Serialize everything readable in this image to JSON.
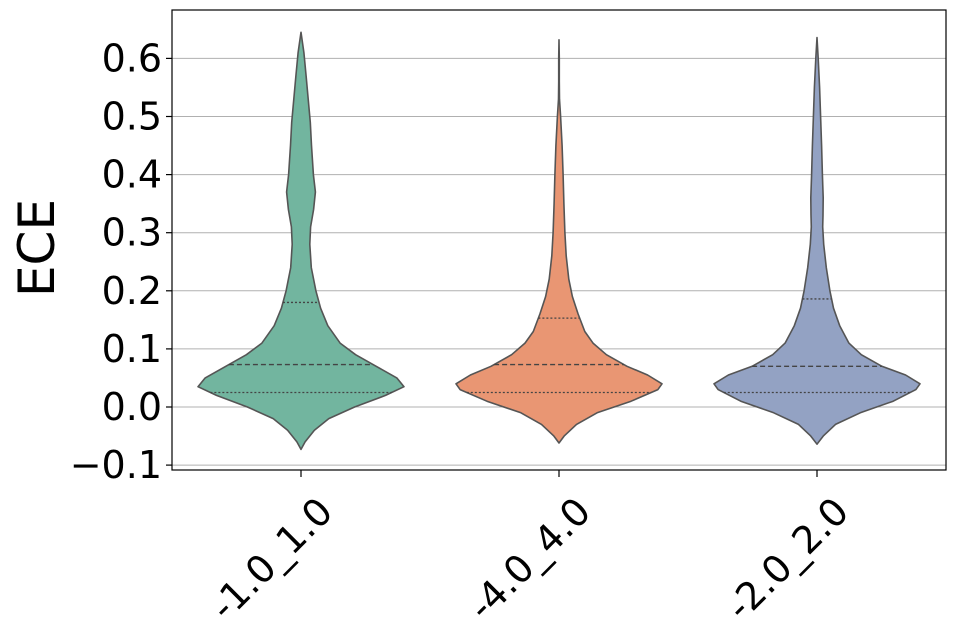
{
  "chart_data": {
    "type": "violin",
    "title": "",
    "xlabel": "",
    "ylabel": "ECE",
    "ylim": [
      -0.105,
      0.68
    ],
    "yticks": [
      -0.1,
      0.0,
      0.1,
      0.2,
      0.3,
      0.4,
      0.5,
      0.6
    ],
    "ytick_labels": [
      "−0.1",
      "0.0",
      "0.1",
      "0.2",
      "0.3",
      "0.4",
      "0.5",
      "0.6"
    ],
    "grid": "horizontal",
    "x_tick_rotation": 45,
    "categories": [
      "-1.0_1.0",
      "-4.0_4.0",
      "-2.0_2.0"
    ],
    "colors": [
      "#72b59f",
      "#e99673",
      "#93a2c3"
    ],
    "outline_color": "#555555",
    "series": [
      {
        "category": "-1.0_1.0",
        "q1": 0.025,
        "median": 0.073,
        "q3": 0.18,
        "min": -0.073,
        "max": 0.645,
        "density": [
          [
            -0.073,
            0.0
          ],
          [
            -0.06,
            0.04
          ],
          [
            -0.04,
            0.13
          ],
          [
            -0.02,
            0.27
          ],
          [
            0.0,
            0.52
          ],
          [
            0.02,
            0.82
          ],
          [
            0.035,
            1.0
          ],
          [
            0.05,
            0.93
          ],
          [
            0.07,
            0.73
          ],
          [
            0.09,
            0.53
          ],
          [
            0.11,
            0.38
          ],
          [
            0.14,
            0.26
          ],
          [
            0.17,
            0.19
          ],
          [
            0.2,
            0.145
          ],
          [
            0.24,
            0.1
          ],
          [
            0.28,
            0.085
          ],
          [
            0.31,
            0.093
          ],
          [
            0.34,
            0.122
          ],
          [
            0.37,
            0.14
          ],
          [
            0.4,
            0.12
          ],
          [
            0.45,
            0.102
          ],
          [
            0.49,
            0.09
          ],
          [
            0.53,
            0.07
          ],
          [
            0.57,
            0.05
          ],
          [
            0.61,
            0.028
          ],
          [
            0.645,
            0.0
          ]
        ]
      },
      {
        "category": "-4.0_4.0",
        "q1": 0.025,
        "median": 0.073,
        "q3": 0.153,
        "min": -0.062,
        "max": 0.632,
        "density": [
          [
            -0.062,
            0.0
          ],
          [
            -0.05,
            0.05
          ],
          [
            -0.03,
            0.17
          ],
          [
            -0.01,
            0.37
          ],
          [
            0.01,
            0.7
          ],
          [
            0.03,
            0.96
          ],
          [
            0.04,
            1.0
          ],
          [
            0.055,
            0.86
          ],
          [
            0.07,
            0.66
          ],
          [
            0.09,
            0.46
          ],
          [
            0.11,
            0.33
          ],
          [
            0.13,
            0.25
          ],
          [
            0.16,
            0.185
          ],
          [
            0.19,
            0.13
          ],
          [
            0.22,
            0.095
          ],
          [
            0.26,
            0.07
          ],
          [
            0.3,
            0.057
          ],
          [
            0.35,
            0.048
          ],
          [
            0.4,
            0.04
          ],
          [
            0.45,
            0.03
          ],
          [
            0.5,
            0.016
          ],
          [
            0.53,
            0.005
          ],
          [
            0.56,
            0.003
          ],
          [
            0.6,
            0.003
          ],
          [
            0.632,
            0.0
          ]
        ]
      },
      {
        "category": "-2.0_2.0",
        "q1": 0.025,
        "median": 0.07,
        "q3": 0.186,
        "min": -0.064,
        "max": 0.636,
        "density": [
          [
            -0.064,
            0.0
          ],
          [
            -0.05,
            0.06
          ],
          [
            -0.03,
            0.18
          ],
          [
            -0.01,
            0.42
          ],
          [
            0.01,
            0.74
          ],
          [
            0.03,
            0.96
          ],
          [
            0.04,
            1.0
          ],
          [
            0.055,
            0.86
          ],
          [
            0.07,
            0.63
          ],
          [
            0.09,
            0.43
          ],
          [
            0.11,
            0.31
          ],
          [
            0.14,
            0.22
          ],
          [
            0.17,
            0.16
          ],
          [
            0.2,
            0.125
          ],
          [
            0.24,
            0.09
          ],
          [
            0.28,
            0.065
          ],
          [
            0.31,
            0.055
          ],
          [
            0.33,
            0.058
          ],
          [
            0.36,
            0.06
          ],
          [
            0.4,
            0.052
          ],
          [
            0.45,
            0.045
          ],
          [
            0.5,
            0.035
          ],
          [
            0.55,
            0.025
          ],
          [
            0.6,
            0.012
          ],
          [
            0.636,
            0.0
          ]
        ]
      }
    ]
  }
}
